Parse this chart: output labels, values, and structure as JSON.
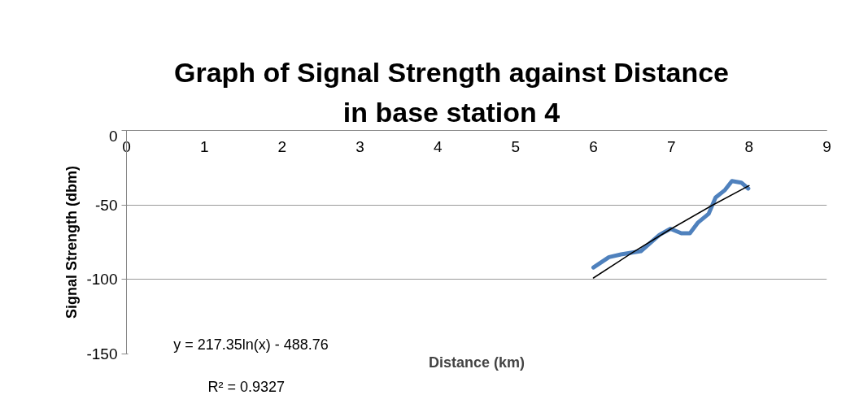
{
  "chart_data": {
    "type": "line",
    "title": "Graph of Signal Strength against Distance\nin base station 4",
    "xlabel": "Distance (km)",
    "ylabel": "Signal Strength (dbm)",
    "annotations": [
      "y = 217.35ln(x) - 488.76",
      "R² = 0.9327"
    ],
    "series": [
      {
        "color": "#4f81bd",
        "x": [
          6.0,
          6.2,
          6.37,
          6.61,
          6.85,
          6.99,
          7.13,
          7.24,
          7.34,
          7.48,
          7.57,
          7.69,
          7.78,
          7.9,
          7.99
        ],
        "values": [
          -92,
          -85,
          -83,
          -81,
          -70,
          -66,
          -69,
          -69,
          -62,
          -56,
          -45,
          -40,
          -34,
          -35,
          -39
        ]
      },
      {
        "color": "#000000",
        "x": [
          6,
          6.5,
          7,
          7.5,
          8
        ],
        "values": [
          -99,
          -82,
          -66,
          -51,
          -37
        ]
      }
    ],
    "xlim": [
      0,
      9
    ],
    "xticks": [
      0,
      1,
      2,
      3,
      4,
      5,
      6,
      7,
      8,
      9
    ],
    "ylim": [
      -150,
      0
    ],
    "yticks": [
      -150,
      -100,
      -50,
      0
    ],
    "grid": "y",
    "marker": "none"
  }
}
